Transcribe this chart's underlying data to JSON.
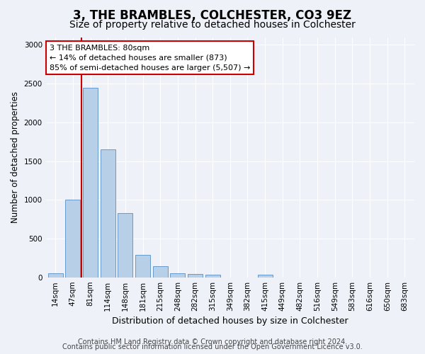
{
  "title1": "3, THE BRAMBLES, COLCHESTER, CO3 9EZ",
  "title2": "Size of property relative to detached houses in Colchester",
  "xlabel": "Distribution of detached houses by size in Colchester",
  "ylabel": "Number of detached properties",
  "categories": [
    "14sqm",
    "47sqm",
    "81sqm",
    "114sqm",
    "148sqm",
    "181sqm",
    "215sqm",
    "248sqm",
    "282sqm",
    "315sqm",
    "349sqm",
    "382sqm",
    "415sqm",
    "449sqm",
    "482sqm",
    "516sqm",
    "549sqm",
    "583sqm",
    "616sqm",
    "650sqm",
    "683sqm"
  ],
  "values": [
    50,
    1000,
    2450,
    1650,
    830,
    290,
    140,
    50,
    40,
    30,
    0,
    0,
    30,
    0,
    0,
    0,
    0,
    0,
    0,
    0,
    0
  ],
  "bar_color": "#b8cfe8",
  "bar_edge_color": "#6699cc",
  "marker_line_color": "#cc0000",
  "marker_bin_index": 2,
  "annotation_line1": "3 THE BRAMBLES: 80sqm",
  "annotation_line2": "← 14% of detached houses are smaller (873)",
  "annotation_line3": "85% of semi-detached houses are larger (5,507) →",
  "annotation_box_color": "#ffffff",
  "annotation_box_edge": "#cc0000",
  "ylim": [
    0,
    3100
  ],
  "yticks": [
    0,
    500,
    1000,
    1500,
    2000,
    2500,
    3000
  ],
  "footer1": "Contains HM Land Registry data © Crown copyright and database right 2024.",
  "footer2": "Contains public sector information licensed under the Open Government Licence v3.0.",
  "bg_color": "#eef2f8",
  "title1_fontsize": 12,
  "title2_fontsize": 10,
  "xlabel_fontsize": 9,
  "ylabel_fontsize": 8.5,
  "tick_fontsize": 7.5,
  "annot_fontsize": 8,
  "footer_fontsize": 7
}
